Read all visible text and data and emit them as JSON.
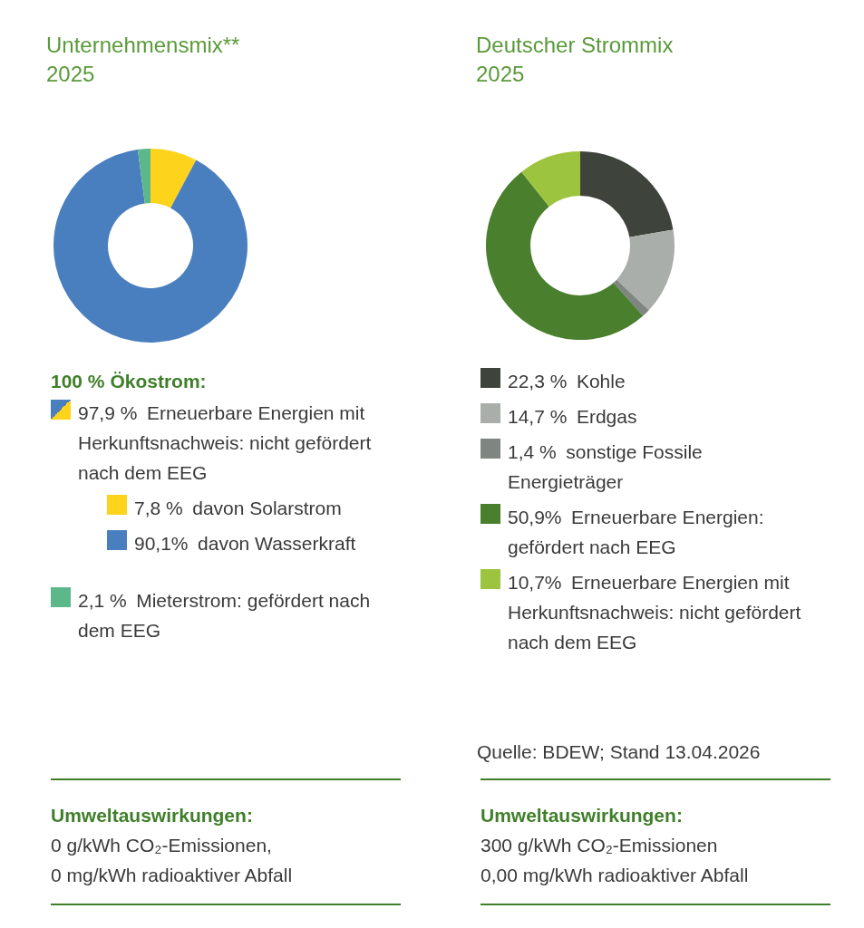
{
  "chart_data": [
    {
      "type": "donut",
      "title": "Unternehmensmix**",
      "subtitle": "2025",
      "legend_title": "100 % Ökostrom:",
      "legend": "bottom",
      "categories": [
        "davon Solarstrom",
        "davon Wasserkraft",
        "Mieterstrom: gefördert nach dem EEG"
      ],
      "values": [
        7.8,
        90.1,
        2.1
      ],
      "colors": [
        "#fed31c",
        "#4a7fbf",
        "#5cb88a"
      ],
      "value_labels": [
        "7,8 %",
        "90,1%",
        "2,1 %"
      ],
      "annotations": [
        "97,9 % Erneuerbare Energien mit Herkunftsnachweis: nicht gefördert nach dem EEG",
        "Umweltauswirkungen:",
        "0 g/kWh CO₂-Emissionen,",
        "0 mg/kWh radioaktiver Abfall"
      ]
    },
    {
      "type": "donut",
      "title": "Deutscher Strommix",
      "subtitle": "2025",
      "legend": "bottom",
      "categories": [
        "Kohle",
        "Erdgas",
        "sonstige Fossile Energieträger",
        "Erneuerbare Energien: gefördert nach EEG",
        "Erneuerbare Energien mit Herkunftsnachweis: nicht gefördert nach dem EEG"
      ],
      "values": [
        22.3,
        14.7,
        1.4,
        50.9,
        10.7
      ],
      "colors": [
        "#3e443c",
        "#a9aeaa",
        "#7f8681",
        "#4a7f2d",
        "#9dc43f"
      ],
      "value_labels": [
        "22,3 %",
        "14,7 %",
        "1,4 %",
        "50,9%",
        "10,7%"
      ],
      "annotations": [
        "Quelle: BDEW; Stand 13.04.2026",
        "Umweltauswirkungen:",
        "300 g/kWh CO₂-Emissionen",
        "0,00 mg/kWh radioaktiver Abfall"
      ]
    }
  ]
}
